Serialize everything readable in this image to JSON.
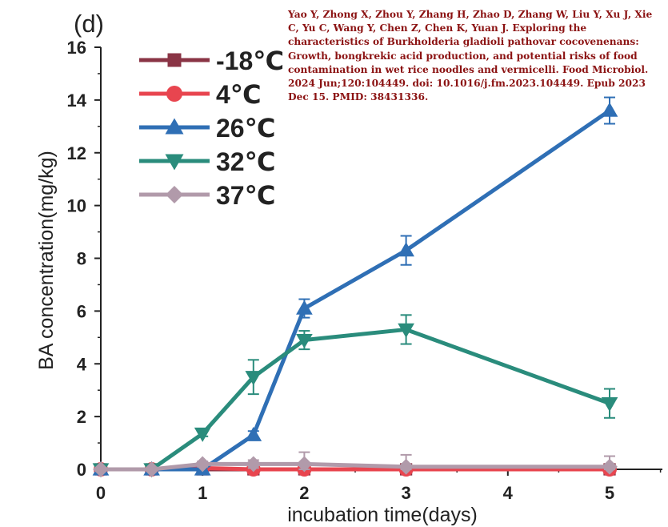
{
  "citation": "Yao Y, Zhong X, Zhou Y, Zhang H, Zhao D, Zhang W, Liu Y, Xu J, Xie C, Yu C, Wang Y, Chen Z, Chen K, Yuan J. Exploring the characteristics of Burkholderia gladioli pathovar cocovenenans: Growth, bongkrekic acid production, and potential risks of food contamination in wet rice noodles and vermicelli. Food Microbiol. 2024 Jun;120:104449. doi: 10.1016/j.fm.2023.104449. Epub 2023 Dec 15. PMID: 38431336.",
  "chart_data": {
    "type": "line",
    "panel_label": "(d)",
    "xlabel": "incubation time(days)",
    "ylabel": "BA concentration(mg/kg)",
    "xlim": [
      0,
      5.5
    ],
    "ylim": [
      0,
      16
    ],
    "xticks": [
      0,
      1,
      2,
      3,
      4,
      5
    ],
    "yticks": [
      0,
      2,
      4,
      6,
      8,
      10,
      12,
      14,
      16
    ],
    "grid": false,
    "legend_position": "top-left",
    "series": [
      {
        "name": "-18℃",
        "color": "#8a3445",
        "marker": "square",
        "x": [
          0,
          0.5,
          1,
          1.5,
          2,
          3,
          5
        ],
        "y": [
          0,
          0,
          0,
          0,
          0,
          0,
          0
        ],
        "err": [
          0,
          0,
          0,
          0,
          0,
          0,
          0
        ]
      },
      {
        "name": "4℃",
        "color": "#e8454f",
        "marker": "circle",
        "x": [
          0,
          0.5,
          1,
          1.5,
          2,
          3,
          5
        ],
        "y": [
          0,
          0,
          0.05,
          0,
          0,
          0,
          0
        ],
        "err": [
          0,
          0,
          0,
          0,
          0,
          0,
          0
        ]
      },
      {
        "name": "26℃",
        "color": "#2f6fb5",
        "marker": "triangle-up",
        "x": [
          0,
          0.5,
          1,
          1.5,
          2,
          3,
          5
        ],
        "y": [
          0,
          0,
          0,
          1.3,
          6.1,
          8.3,
          13.6
        ],
        "err": [
          0,
          0,
          0,
          0.15,
          0.35,
          0.55,
          0.5
        ]
      },
      {
        "name": "32℃",
        "color": "#2a8c7c",
        "marker": "triangle-down",
        "x": [
          0,
          0.5,
          1,
          1.5,
          2,
          3,
          5
        ],
        "y": [
          0,
          0,
          1.35,
          3.5,
          4.9,
          5.3,
          2.5
        ],
        "err": [
          0,
          0,
          0.1,
          0.65,
          0.35,
          0.55,
          0.55
        ]
      },
      {
        "name": "37℃",
        "color": "#b19aaa",
        "marker": "diamond",
        "x": [
          0,
          0.5,
          1,
          1.5,
          2,
          3,
          5
        ],
        "y": [
          0,
          0,
          0.2,
          0.2,
          0.2,
          0.1,
          0.1
        ],
        "err": [
          0,
          0,
          0.1,
          0.15,
          0.45,
          0.45,
          0.4
        ]
      }
    ]
  }
}
